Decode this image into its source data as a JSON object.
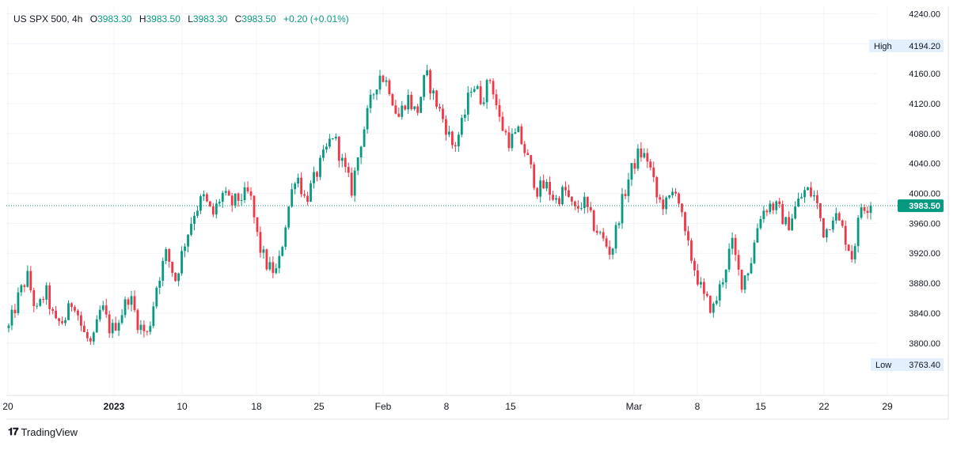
{
  "legend": {
    "symbol": "US SPX 500",
    "interval": "4h",
    "open_label": "O",
    "open": "3983.30",
    "high_label": "H",
    "high": "3983.50",
    "low_label": "L",
    "low": "3983.30",
    "close_label": "C",
    "close": "3983.50",
    "change": "+0.20 (+0.01%)"
  },
  "brand": {
    "name": "TradingView",
    "logo": "tradingview-logo-icon"
  },
  "colors": {
    "up": "#089981",
    "down": "#f23645",
    "price_tag": "#089981",
    "grid": "#f0f3fa"
  },
  "price_axis": {
    "ticks": [
      "4240.00",
      "4200.00",
      "4160.00",
      "4120.00",
      "4080.00",
      "4040.00",
      "4000.00",
      "3960.00",
      "3920.00",
      "3880.00",
      "3840.00",
      "3800.00"
    ]
  },
  "time_axis": {
    "ticks": [
      "20",
      "2023",
      "10",
      "18",
      "25",
      "Feb",
      "8",
      "15",
      "Mar",
      "8",
      "15",
      "22",
      "29"
    ]
  },
  "markers": {
    "high_label": "High",
    "high_value": "4194.20",
    "low_label": "Low",
    "low_value": "3763.40",
    "last_price": "3983.50"
  },
  "chart_data": {
    "type": "candlestick",
    "title": "US SPX 500",
    "interval": "4h",
    "ylim": [
      3730,
      4250
    ],
    "grid": true,
    "x_ticks": [
      "20",
      "2023",
      "10",
      "18",
      "25",
      "Feb",
      "8",
      "15",
      "Mar",
      "8",
      "15",
      "22",
      "29"
    ],
    "session_high": 4194.2,
    "session_low": 3763.4,
    "last_close": 3983.5,
    "close_path": [
      3820,
      3860,
      3890,
      3840,
      3870,
      3825,
      3830,
      3860,
      3815,
      3795,
      3850,
      3815,
      3835,
      3865,
      3825,
      3810,
      3880,
      3920,
      3885,
      3935,
      3975,
      3995,
      3970,
      4000,
      3985,
      3995,
      4000,
      3930,
      3900,
      3895,
      3970,
      4030,
      3990,
      4020,
      4050,
      4080,
      4040,
      4005,
      4070,
      4120,
      4160,
      4145,
      4100,
      4130,
      4105,
      4160,
      4125,
      4095,
      4060,
      4095,
      4150,
      4125,
      4155,
      4095,
      4070,
      4080,
      4045,
      4005,
      4010,
      3990,
      4005,
      3975,
      3990,
      3960,
      3940,
      3920,
      3980,
      4025,
      4055,
      4045,
      3990,
      3985,
      4010,
      3940,
      3900,
      3860,
      3845,
      3885,
      3935,
      3880,
      3905,
      3970,
      3985,
      3980,
      3955,
      3985,
      4005,
      3995,
      3945,
      3975,
      3950,
      3915,
      3985,
      3983.5
    ]
  }
}
